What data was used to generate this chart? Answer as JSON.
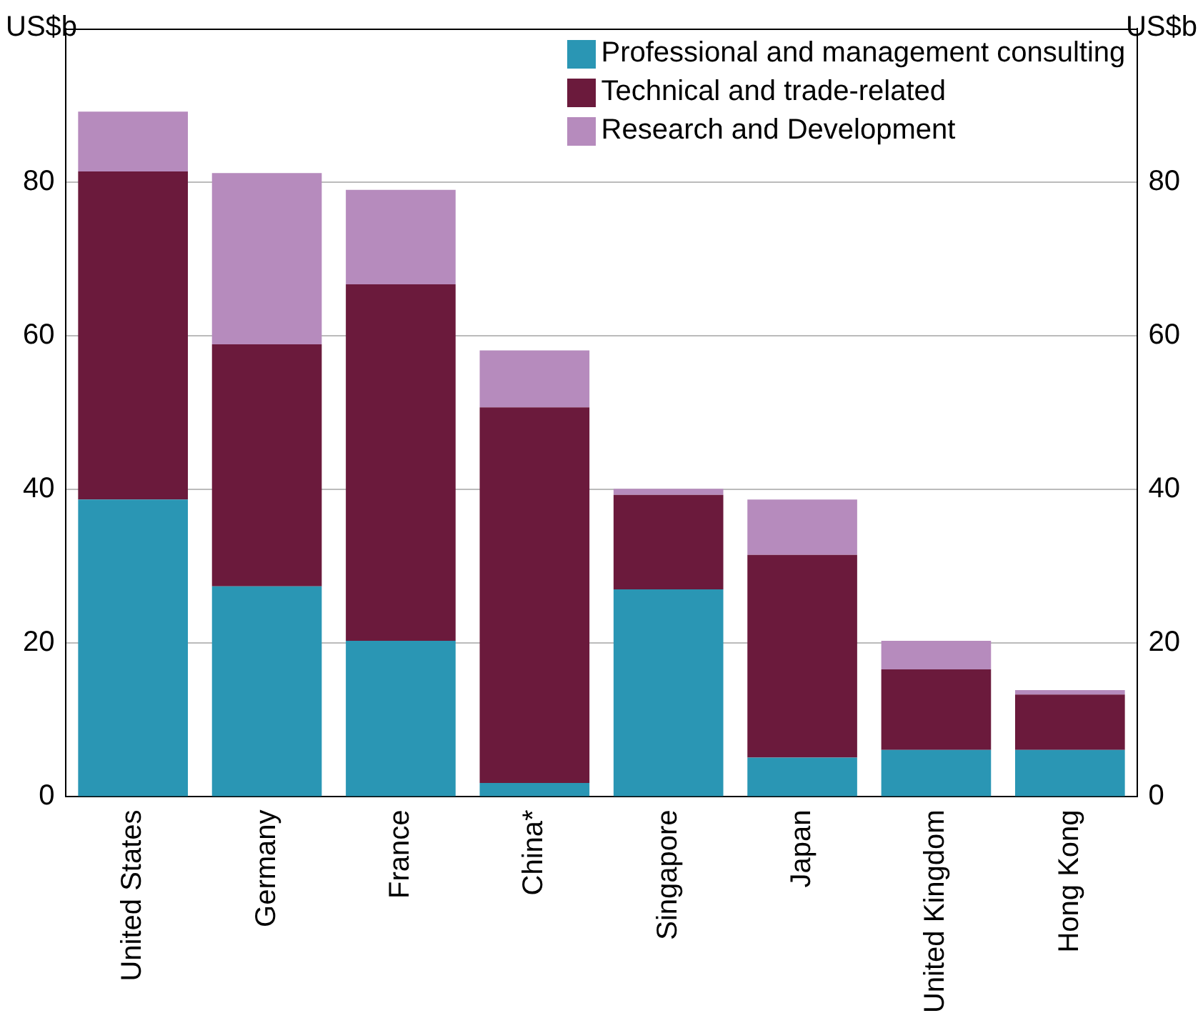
{
  "chart_data": {
    "type": "bar",
    "stacked": true,
    "ylabel": "US$b",
    "y2label": "US$b",
    "categories": [
      "United States",
      "Germany",
      "France",
      "China*",
      "Singapore",
      "Japan",
      "United Kingdom",
      "Hong Kong"
    ],
    "series": [
      {
        "name": "Professional and management consulting",
        "color": "#2a96b4",
        "values": [
          38.7,
          27.4,
          20.3,
          1.8,
          27,
          5.1,
          6.1,
          6.1
        ]
      },
      {
        "name": "Technical and trade-related",
        "color": "#6b1a3c",
        "values": [
          42.7,
          31.5,
          46.4,
          48.9,
          12.3,
          26.4,
          10.5,
          7.2
        ]
      },
      {
        "name": "Research and Development",
        "color": "#b68bbd",
        "values": [
          7.8,
          22.3,
          12.3,
          7.4,
          0.8,
          7.2,
          3.7,
          0.6
        ]
      }
    ],
    "ylim": [
      0,
      100
    ],
    "yticks": [
      0,
      20,
      40,
      60,
      80
    ],
    "y2lim": [
      0,
      100
    ],
    "y2ticks": [
      0,
      20,
      40,
      60,
      80
    ],
    "grid": "y",
    "legend": "top right"
  }
}
